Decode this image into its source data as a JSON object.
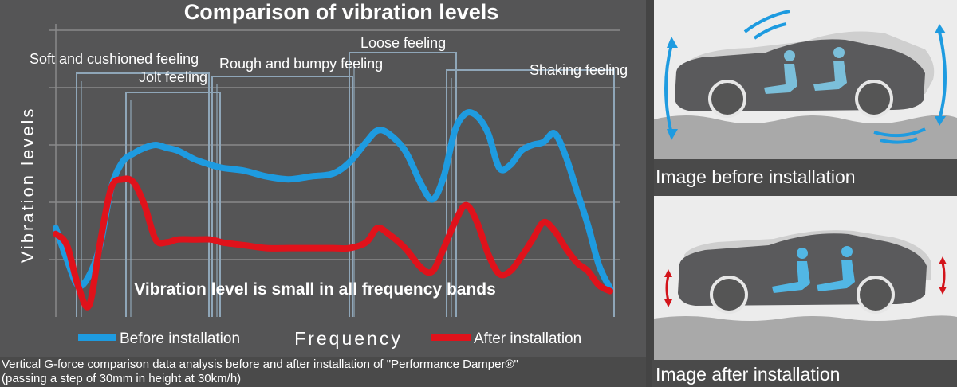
{
  "chart": {
    "title": "Comparison of vibration levels",
    "ylabel": "Vibration levels",
    "xlabel": "Frequency",
    "message": "Vibration level is small in all frequency bands",
    "legend": {
      "before": "Before installation",
      "after": "After installation"
    },
    "bands": [
      {
        "label": "Soft and cushioned feeling"
      },
      {
        "label": "Jolt feeling"
      },
      {
        "label": "Rough and bumpy feeling"
      },
      {
        "label": "Loose feeling"
      },
      {
        "label": "Shaking feeling"
      }
    ]
  },
  "caption": {
    "line1": "Vertical G-force comparison data analysis before and after installation of \"Performance Damper®\"",
    "line2": "(passing a step of 30mm in height at 30km/h)"
  },
  "images": {
    "before_caption": "Image before installation",
    "after_caption": "Image after installation"
  },
  "colors": {
    "before": "#1e9be0",
    "after": "#e0121b",
    "band": "#8fa6b8",
    "grid": "#8a8a8a"
  },
  "chart_data": {
    "type": "line",
    "title": "Comparison of vibration levels",
    "xlabel": "Frequency",
    "ylabel": "Vibration levels",
    "ylim": [
      0,
      5
    ],
    "xlim": [
      0,
      1
    ],
    "grid": true,
    "legend_position": "bottom",
    "series": [
      {
        "name": "Before installation",
        "x": [
          0.0,
          0.02,
          0.04,
          0.06,
          0.08,
          0.1,
          0.12,
          0.14,
          0.16,
          0.18,
          0.2,
          0.22,
          0.25,
          0.28,
          0.3,
          0.34,
          0.38,
          0.42,
          0.46,
          0.5,
          0.53,
          0.56,
          0.58,
          0.6,
          0.63,
          0.66,
          0.68,
          0.7,
          0.72,
          0.74,
          0.76,
          0.78,
          0.8,
          0.82,
          0.84,
          0.86,
          0.88,
          0.9,
          0.92,
          0.94,
          0.96,
          0.98,
          1.0
        ],
        "values": [
          1.55,
          1.0,
          0.55,
          0.72,
          1.25,
          2.25,
          2.7,
          2.85,
          2.95,
          3.0,
          2.95,
          2.9,
          2.75,
          2.65,
          2.6,
          2.55,
          2.45,
          2.4,
          2.45,
          2.5,
          2.7,
          3.05,
          3.25,
          3.2,
          2.9,
          2.3,
          2.05,
          2.45,
          3.25,
          3.55,
          3.5,
          3.2,
          2.6,
          2.65,
          2.9,
          3.0,
          3.05,
          3.2,
          2.8,
          2.2,
          1.6,
          0.9,
          0.5
        ]
      },
      {
        "name": "After installation",
        "x": [
          0.0,
          0.02,
          0.04,
          0.06,
          0.08,
          0.1,
          0.12,
          0.14,
          0.16,
          0.18,
          0.2,
          0.22,
          0.25,
          0.28,
          0.3,
          0.34,
          0.38,
          0.42,
          0.46,
          0.5,
          0.53,
          0.56,
          0.58,
          0.6,
          0.63,
          0.66,
          0.68,
          0.7,
          0.72,
          0.74,
          0.76,
          0.78,
          0.8,
          0.82,
          0.84,
          0.86,
          0.88,
          0.9,
          0.92,
          0.94,
          0.96,
          0.98,
          1.0
        ],
        "values": [
          1.45,
          1.25,
          0.55,
          0.2,
          1.3,
          2.25,
          2.4,
          2.35,
          1.95,
          1.35,
          1.3,
          1.35,
          1.35,
          1.35,
          1.3,
          1.25,
          1.2,
          1.2,
          1.2,
          1.2,
          1.2,
          1.3,
          1.55,
          1.45,
          1.2,
          0.85,
          0.8,
          1.2,
          1.65,
          1.95,
          1.65,
          1.1,
          0.75,
          0.8,
          1.05,
          1.35,
          1.65,
          1.5,
          1.2,
          0.95,
          0.8,
          0.55,
          0.45
        ]
      }
    ]
  }
}
